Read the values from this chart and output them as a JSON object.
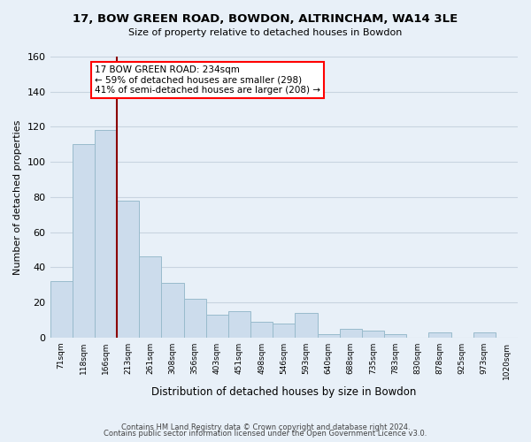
{
  "title": "17, BOW GREEN ROAD, BOWDON, ALTRINCHAM, WA14 3LE",
  "subtitle": "Size of property relative to detached houses in Bowdon",
  "xlabel": "Distribution of detached houses by size in Bowdon",
  "ylabel": "Number of detached properties",
  "bar_labels": [
    "71sqm",
    "118sqm",
    "166sqm",
    "213sqm",
    "261sqm",
    "308sqm",
    "356sqm",
    "403sqm",
    "451sqm",
    "498sqm",
    "546sqm",
    "593sqm",
    "640sqm",
    "688sqm",
    "735sqm",
    "783sqm",
    "830sqm",
    "878sqm",
    "925sqm",
    "973sqm",
    "1020sqm"
  ],
  "bar_values": [
    32,
    110,
    118,
    78,
    46,
    31,
    22,
    13,
    15,
    9,
    8,
    14,
    2,
    5,
    4,
    2,
    0,
    3,
    0,
    3,
    0
  ],
  "bar_color": "#ccdcec",
  "bar_edge_color": "#99bbcc",
  "annotation_box_text": "17 BOW GREEN ROAD: 234sqm\n← 59% of detached houses are smaller (298)\n41% of semi-detached houses are larger (208) →",
  "red_line_x": 2.5,
  "ylim": [
    0,
    160
  ],
  "yticks": [
    0,
    20,
    40,
    60,
    80,
    100,
    120,
    140,
    160
  ],
  "footer_line1": "Contains HM Land Registry data © Crown copyright and database right 2024.",
  "footer_line2": "Contains public sector information licensed under the Open Government Licence v3.0.",
  "background_color": "#e8f0f8",
  "grid_color": "#c8d4e0"
}
